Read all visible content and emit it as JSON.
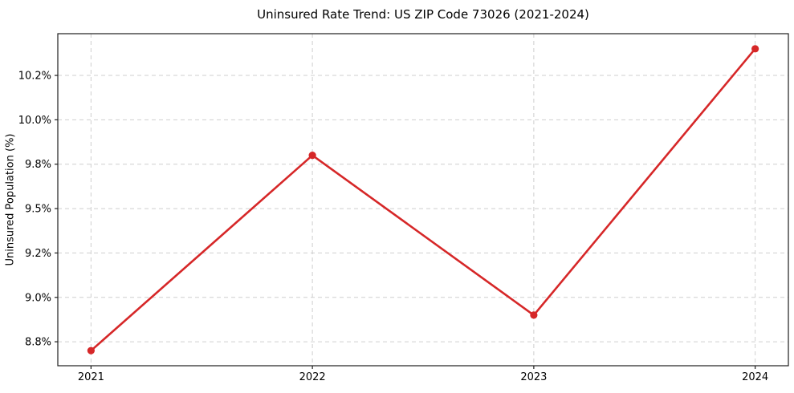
{
  "chart_data": {
    "type": "line",
    "title": "Uninsured Rate Trend: US ZIP Code 73026 (2021-2024)",
    "xlabel": "",
    "ylabel": "Uninsured Population (%)",
    "x": [
      2021,
      2022,
      2023,
      2024
    ],
    "values": [
      8.7,
      9.8,
      8.9,
      10.4
    ],
    "x_tick_labels": [
      "2021",
      "2022",
      "2023",
      "2024"
    ],
    "y_ticks": [
      8.75,
      9.0,
      9.25,
      9.5,
      9.75,
      10.0,
      10.25
    ],
    "y_tick_labels": [
      "8.8%",
      "9.0%",
      "9.2%",
      "9.5%",
      "9.8%",
      "10.0%",
      "10.2%"
    ],
    "xlim": [
      2020.85,
      2024.15
    ],
    "ylim": [
      8.615,
      10.485
    ],
    "grid": true,
    "grid_style": "dashed",
    "legend": "none",
    "marker": "circle",
    "colors": {
      "line": "#d62728",
      "marker": "#d62728",
      "grid": "#cfcfcf",
      "spine": "#1f1f1f",
      "text": "#000000",
      "background": "#ffffff"
    }
  }
}
